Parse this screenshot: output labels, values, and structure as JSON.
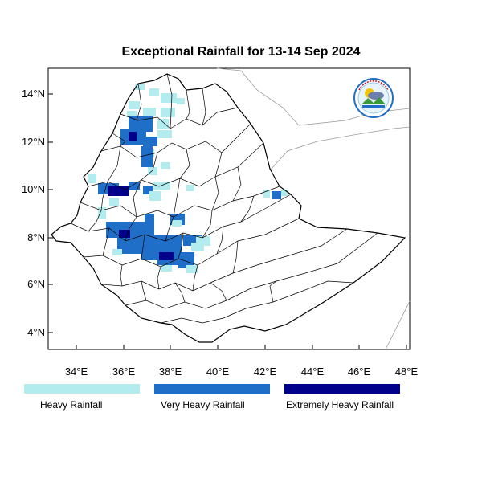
{
  "title": "Exceptional Rainfall for 13-14 Sep 2024",
  "axes": {
    "lat_labels": [
      "14°N",
      "12°N",
      "10°N",
      "8°N",
      "6°N",
      "4°N"
    ],
    "lon_labels": [
      "34°E",
      "36°E",
      "38°E",
      "40°E",
      "42°E",
      "44°E",
      "46°E",
      "48°E"
    ]
  },
  "legend": [
    {
      "label": "Heavy Rainfall",
      "color": "#b3ecef"
    },
    {
      "label": "Very Heavy Rainfall",
      "color": "#1f6fc9"
    },
    {
      "label": "Extremely Heavy Rainfall",
      "color": "#00008b"
    }
  ],
  "colors": {
    "heavy": "#b3ecef",
    "very_heavy": "#1f6fc9",
    "extreme": "#00008b",
    "boundary": "#000000",
    "neighbor": "#9a9a9a"
  },
  "logo": {
    "icon": "ethiopian-meteorology-institute-logo"
  }
}
